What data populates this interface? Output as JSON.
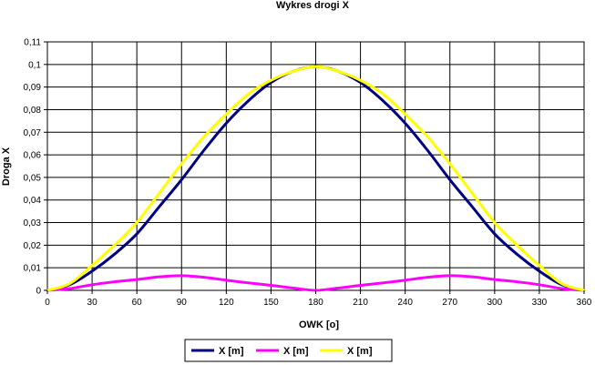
{
  "chart_data": {
    "type": "line",
    "title": "Wykres drogi X",
    "xlabel": "OWK [o]",
    "ylabel": "Droga X",
    "xlim": [
      0,
      360
    ],
    "ylim": [
      0,
      0.11
    ],
    "xticks": [
      0,
      30,
      60,
      90,
      120,
      150,
      180,
      210,
      240,
      270,
      300,
      330,
      360
    ],
    "xtick_labels": [
      "0",
      "30",
      "60",
      "90",
      "120",
      "150",
      "180",
      "210",
      "240",
      "270",
      "300",
      "330",
      "360"
    ],
    "yticks": [
      0,
      0.01,
      0.02,
      0.03,
      0.04,
      0.05,
      0.06,
      0.07,
      0.08,
      0.09,
      0.1,
      0.11
    ],
    "ytick_labels": [
      "0",
      "0,01",
      "0,02",
      "0,03",
      "0,04",
      "0,05",
      "0,06",
      "0,07",
      "0,08",
      "0,09",
      "0,1",
      "0,11"
    ],
    "grid": true,
    "legend_position": "bottom",
    "x": [
      0,
      15,
      30,
      45,
      60,
      75,
      90,
      105,
      120,
      135,
      150,
      165,
      180,
      195,
      210,
      225,
      240,
      255,
      270,
      285,
      300,
      315,
      330,
      345,
      360
    ],
    "series": [
      {
        "name": "X  [m]",
        "color": "#000080",
        "values": [
          0,
          0.0025,
          0.0085,
          0.016,
          0.025,
          0.037,
          0.049,
          0.062,
          0.074,
          0.084,
          0.092,
          0.097,
          0.099,
          0.097,
          0.092,
          0.084,
          0.074,
          0.062,
          0.049,
          0.037,
          0.025,
          0.016,
          0.0085,
          0.0025,
          0
        ]
      },
      {
        "name": "X  [m]",
        "color": "#FF00FF",
        "values": [
          0,
          0.0008,
          0.0025,
          0.0038,
          0.0048,
          0.006,
          0.0065,
          0.0058,
          0.0045,
          0.0033,
          0.0022,
          0.001,
          0,
          0.001,
          0.0022,
          0.0033,
          0.0045,
          0.0058,
          0.0065,
          0.006,
          0.0048,
          0.0038,
          0.0025,
          0.0008,
          0
        ]
      },
      {
        "name": "X [m]",
        "color": "#FFFF00",
        "values": [
          0,
          0.003,
          0.011,
          0.02,
          0.03,
          0.043,
          0.056,
          0.068,
          0.078,
          0.087,
          0.093,
          0.097,
          0.099,
          0.097,
          0.093,
          0.087,
          0.078,
          0.068,
          0.056,
          0.043,
          0.03,
          0.02,
          0.011,
          0.003,
          0
        ]
      }
    ]
  }
}
